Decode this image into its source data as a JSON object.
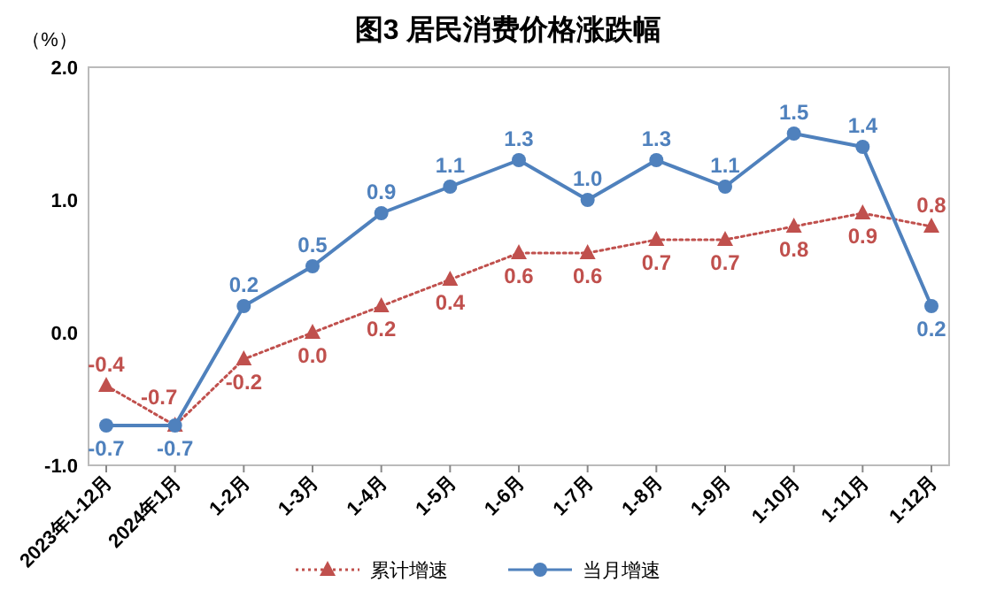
{
  "chart_data": {
    "type": "line",
    "title": "图3  居民消费价格涨跌幅",
    "ylabel": "（%）",
    "categories": [
      "2023年1-12月",
      "2024年1月",
      "1-2月",
      "1-3月",
      "1-4月",
      "1-5月",
      "1-6月",
      "1-7月",
      "1-8月",
      "1-9月",
      "1-10月",
      "1-11月",
      "1-12月"
    ],
    "series": [
      {
        "name": "累计增速",
        "color": "#c0504d",
        "marker": "triangle",
        "line_style": "dotted",
        "values": [
          -0.4,
          -0.7,
          -0.2,
          0.0,
          0.2,
          0.4,
          0.6,
          0.6,
          0.7,
          0.7,
          0.8,
          0.9,
          0.8
        ],
        "value_labels": [
          "-0.4",
          "-0.7",
          "-0.2",
          "0.0",
          "0.2",
          "0.4",
          "0.6",
          "0.6",
          "0.7",
          "0.7",
          "0.8",
          "0.9",
          "0.8"
        ]
      },
      {
        "name": "当月增速",
        "color": "#4f81bd",
        "marker": "circle",
        "line_style": "solid",
        "values": [
          -0.7,
          -0.7,
          0.2,
          0.5,
          0.9,
          1.1,
          1.3,
          1.0,
          1.3,
          1.1,
          1.5,
          1.4,
          0.2
        ],
        "value_labels": [
          "-0.7",
          "-0.7",
          "0.2",
          "0.5",
          "0.9",
          "1.1",
          "1.3",
          "1.0",
          "1.3",
          "1.1",
          "1.5",
          "1.4",
          "0.2"
        ]
      }
    ],
    "ylim": [
      -1,
      2
    ],
    "yticks": [
      {
        "value": -1,
        "label": "-1.0"
      },
      {
        "value": 0,
        "label": "0.0"
      },
      {
        "value": 1,
        "label": "1.0"
      },
      {
        "value": 2,
        "label": "2.0"
      }
    ],
    "grid": false,
    "legend": "bottom"
  }
}
